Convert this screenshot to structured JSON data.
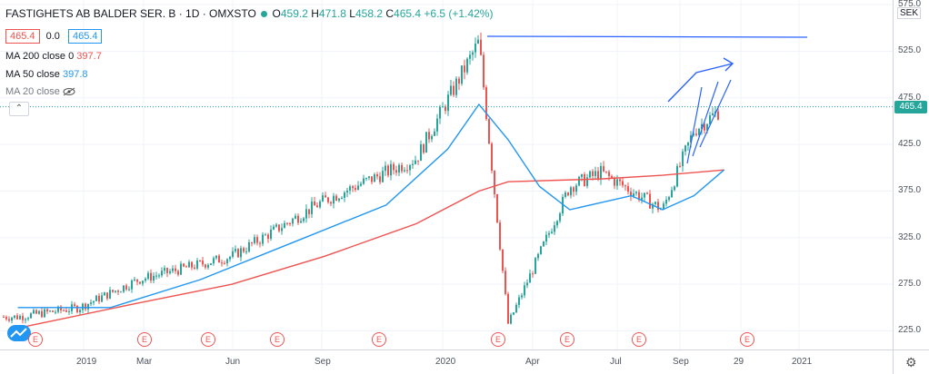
{
  "header": {
    "symbol": "FASTIGHETS AB BALDER SER. B · 1D · OMXSTO",
    "ohlc": [
      {
        "label": "O",
        "value": "459.2"
      },
      {
        "label": "H",
        "value": "471.8"
      },
      {
        "label": "L",
        "value": "458.2"
      },
      {
        "label": "C",
        "value": "465.4"
      },
      {
        "label": "",
        "value": "+6.5 (+1.42%)"
      }
    ],
    "bid": "465.4",
    "spread": "0.0",
    "ask": "465.4"
  },
  "indicators": [
    {
      "name": "MA 200 close 0",
      "value": "397.7",
      "color": "#ef5350"
    },
    {
      "name": "MA 50 close",
      "value": "397.8",
      "color": "#2196f3"
    },
    {
      "name": "MA 20 close",
      "value": "",
      "color": "#787b86",
      "hidden": true
    }
  ],
  "currency": "SEK",
  "last_price": "465.4",
  "colors": {
    "up": "#26a69a",
    "down": "#ef5350",
    "ma200": "#ef5350",
    "ma50": "#2196f3",
    "drawing": "#2962ff"
  },
  "icons": [
    "eye-off-icon",
    "chevron-up-icon",
    "settings-gear-icon",
    "logo-cloud-icon"
  ],
  "chart_data": {
    "type": "candlestick",
    "y_ticks": [
      "575.0",
      "525.0",
      "475.0",
      "425.0",
      "375.0",
      "325.0",
      "275.0",
      "225.0"
    ],
    "x_ticks": [
      "2019",
      "Mar",
      "Jun",
      "Sep",
      "2020",
      "Apr",
      "Jul",
      "Sep",
      "29",
      "2021"
    ],
    "ylim": [
      205,
      580
    ],
    "close_series": [
      {
        "x": "2018-11",
        "y": 240
      },
      {
        "x": "2019-01",
        "y": 250
      },
      {
        "x": "2019-03",
        "y": 280
      },
      {
        "x": "2019-06",
        "y": 305
      },
      {
        "x": "2019-09",
        "y": 365
      },
      {
        "x": "2019-12",
        "y": 410
      },
      {
        "x": "2020-02",
        "y": 535
      },
      {
        "x": "2020-03",
        "y": 232
      },
      {
        "x": "2020-05",
        "y": 380
      },
      {
        "x": "2020-06",
        "y": 395
      },
      {
        "x": "2020-08",
        "y": 355
      },
      {
        "x": "2020-09",
        "y": 440
      },
      {
        "x": "2020-10",
        "y": 465.4
      }
    ],
    "ma200": {
      "name": "MA 200 close 0",
      "last": 397.7
    },
    "ma50": {
      "name": "MA 50 close",
      "last": 397.8
    },
    "earnings_markers": "E"
  }
}
